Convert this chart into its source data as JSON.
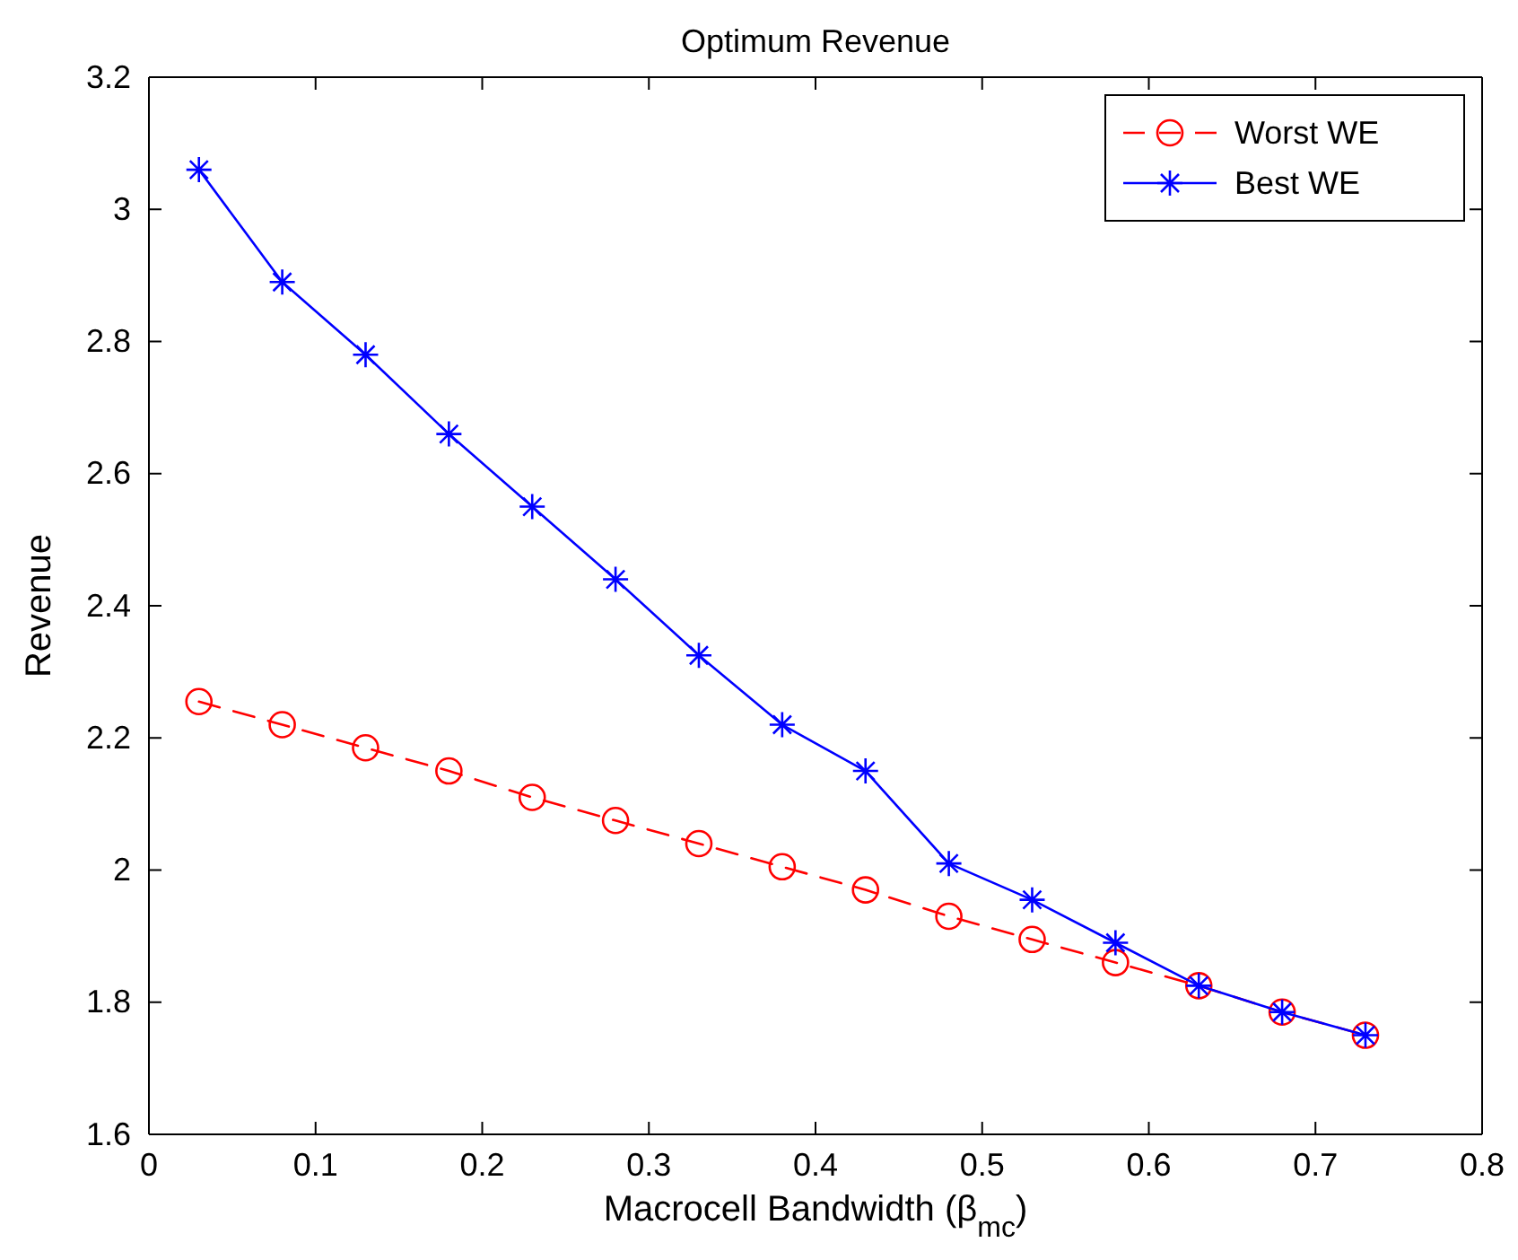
{
  "chart_data": {
    "type": "line",
    "title": "Optimum Revenue",
    "xlabel": "Macrocell Bandwidth (β$_{mc}$)",
    "ylabel": "Revenue",
    "x": [
      0.03,
      0.08,
      0.13,
      0.18,
      0.23,
      0.28,
      0.33,
      0.38,
      0.43,
      0.48,
      0.53,
      0.58,
      0.63,
      0.68,
      0.73
    ],
    "series": [
      {
        "name": "Worst WE",
        "color": "#ff0000",
        "marker": "circle",
        "line_style": "dashed",
        "values": [
          2.255,
          2.22,
          2.185,
          2.15,
          2.11,
          2.075,
          2.04,
          2.005,
          1.97,
          1.93,
          1.895,
          1.86,
          1.825,
          1.785,
          1.75
        ]
      },
      {
        "name": "Best WE",
        "color": "#0000ff",
        "marker": "cross",
        "line_style": "solid",
        "values": [
          3.06,
          2.89,
          2.78,
          2.66,
          2.55,
          2.44,
          2.325,
          2.22,
          2.15,
          2.01,
          1.955,
          1.89,
          1.825,
          1.785,
          1.75
        ]
      }
    ],
    "xlim": [
      0,
      0.8
    ],
    "xticks": [
      0,
      0.1,
      0.2,
      0.3,
      0.4,
      0.5,
      0.6,
      0.7,
      0.8
    ],
    "ylim": [
      1.6,
      3.2
    ],
    "yticks": [
      1.6,
      1.8,
      2,
      2.2,
      2.4,
      2.6,
      2.8,
      3,
      3.2
    ],
    "grid": false,
    "legend": "top right"
  }
}
